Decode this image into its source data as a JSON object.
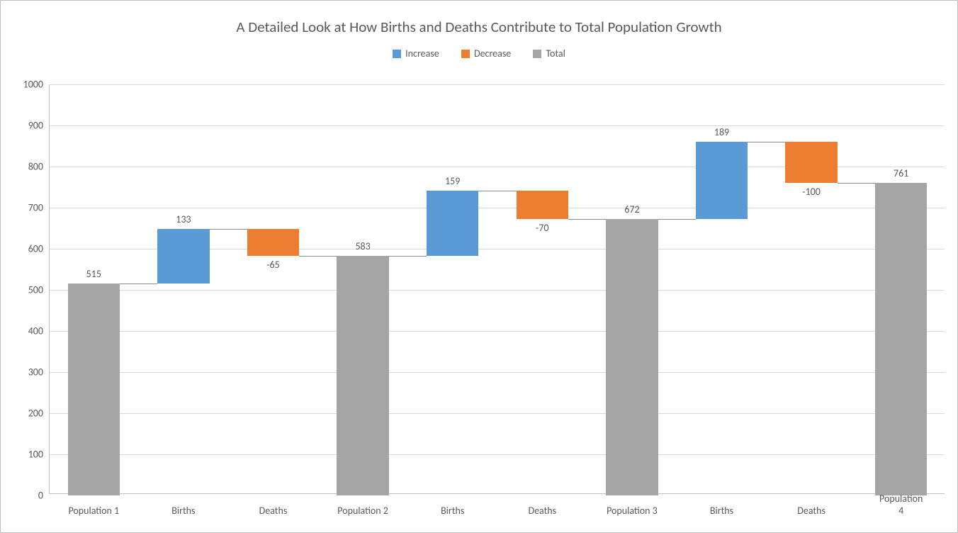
{
  "chart": {
    "type": "waterfall",
    "title": "A Detailed Look at How Births and Deaths Contribute to Total Population Growth",
    "title_fontsize": 21,
    "title_color": "#595959",
    "background_color": "#ffffff",
    "border_color": "#bfbfbf",
    "grid_color": "#d9d9d9",
    "axis_color": "#bfbfbf",
    "label_color": "#595959",
    "label_fontsize": 14,
    "legend": [
      {
        "label": "Increase",
        "color": "#5b9bd5"
      },
      {
        "label": "Decrease",
        "color": "#ed7d31"
      },
      {
        "label": "Total",
        "color": "#a5a5a5"
      }
    ],
    "ylim": [
      0,
      1000
    ],
    "ytick_step": 100,
    "colors": {
      "increase": "#5b9bd5",
      "decrease": "#ed7d31",
      "total": "#a5a5a5"
    },
    "categories": [
      "Population 1",
      "Births",
      "Deaths",
      "Population 2",
      "Births",
      "Deaths",
      "Population 3",
      "Births",
      "Deaths",
      "Population 4"
    ],
    "bars": [
      {
        "type": "total",
        "label": "515",
        "from": 0,
        "to": 515
      },
      {
        "type": "increase",
        "label": "133",
        "from": 515,
        "to": 648
      },
      {
        "type": "decrease",
        "label": "-65",
        "from": 648,
        "to": 583
      },
      {
        "type": "total",
        "label": "583",
        "from": 0,
        "to": 583
      },
      {
        "type": "increase",
        "label": "159",
        "from": 583,
        "to": 742
      },
      {
        "type": "decrease",
        "label": "-70",
        "from": 742,
        "to": 672
      },
      {
        "type": "total",
        "label": "672",
        "from": 0,
        "to": 672
      },
      {
        "type": "increase",
        "label": "189",
        "from": 672,
        "to": 861
      },
      {
        "type": "decrease",
        "label": "-100",
        "from": 861,
        "to": 761
      },
      {
        "type": "total",
        "label": "761",
        "from": 0,
        "to": 761
      }
    ],
    "bar_width_ratio": 0.58,
    "connector_color": "#8c8c8c"
  }
}
